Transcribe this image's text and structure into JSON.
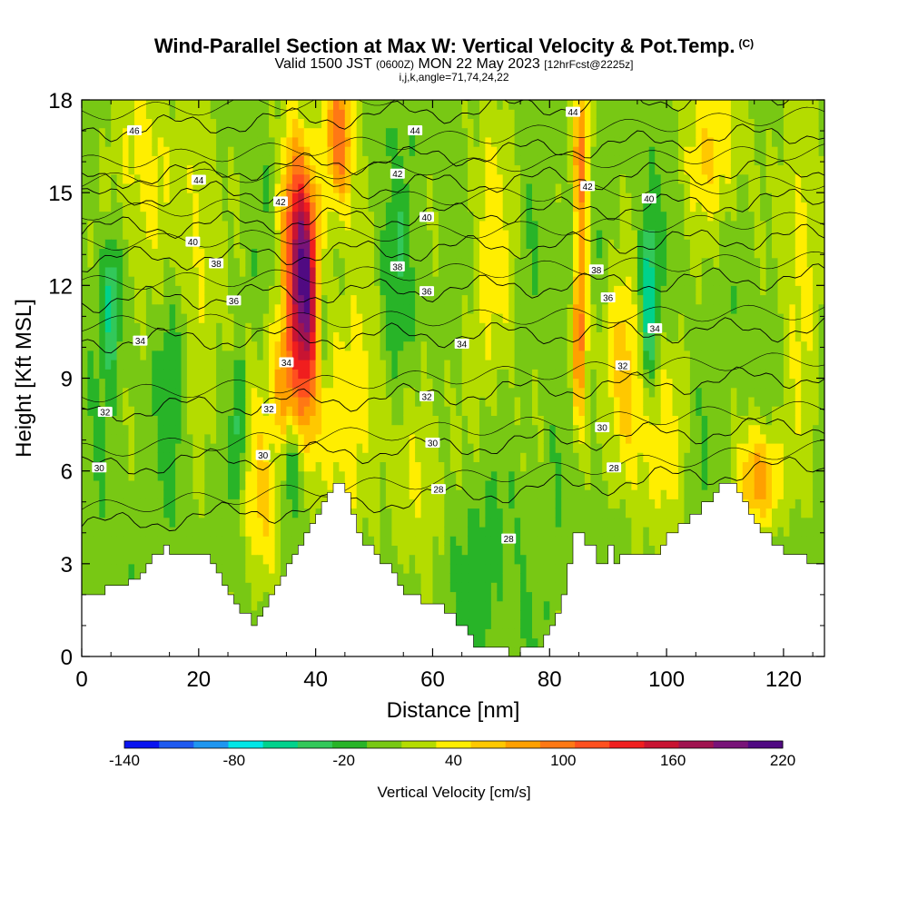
{
  "header": {
    "title": "Wind-Parallel Section at Max W: Vertical Velocity & Pot.Temp.",
    "copyright": "(C)",
    "valid_prefix": "Valid 1500 JST",
    "valid_utc": "(0600Z)",
    "valid_date": "MON 22 May 2023",
    "forecast_tag": "[12hrFcst@2225z]",
    "indices": "i,j,k,angle=71,74,24,22"
  },
  "chart_data": {
    "type": "heatmap",
    "title": "Wind-Parallel Section at Max W: Vertical Velocity & Pot.Temp.",
    "xlabel": "Distance [nm]",
    "ylabel": "Height [Kft MSL]",
    "xlim": [
      0,
      127
    ],
    "ylim": [
      0,
      18
    ],
    "x_ticks": [
      0,
      20,
      40,
      60,
      80,
      100,
      120
    ],
    "y_ticks": [
      0,
      3,
      6,
      9,
      12,
      15,
      18
    ],
    "colorbar": {
      "label": "Vertical Velocity [cm/s]",
      "min": -140,
      "max": 220,
      "step": 20,
      "tick_labels": [
        -140,
        -80,
        -20,
        40,
        100,
        160,
        220
      ],
      "colors": [
        "#0a14f0",
        "#1e5af0",
        "#1e96f0",
        "#00e6e6",
        "#00d28c",
        "#32c85a",
        "#28b428",
        "#78c814",
        "#b4dc00",
        "#ffee00",
        "#ffc800",
        "#ffa000",
        "#ff7814",
        "#ff501e",
        "#f01e1e",
        "#c81432",
        "#a01450",
        "#781478",
        "#500a82"
      ]
    },
    "terrain_profile": [
      [
        0,
        2
      ],
      [
        4,
        2
      ],
      [
        4,
        2.3
      ],
      [
        8,
        2.3
      ],
      [
        8,
        2.5
      ],
      [
        10,
        2.5
      ],
      [
        10,
        2.7
      ],
      [
        11,
        2.7
      ],
      [
        11,
        3
      ],
      [
        12,
        3
      ],
      [
        12,
        3.3
      ],
      [
        14,
        3.3
      ],
      [
        14,
        3.6
      ],
      [
        15,
        3.6
      ],
      [
        15,
        3.3
      ],
      [
        22,
        3.3
      ],
      [
        22,
        3
      ],
      [
        23,
        3
      ],
      [
        23,
        2.7
      ],
      [
        24,
        2.7
      ],
      [
        24,
        2.3
      ],
      [
        25,
        2.3
      ],
      [
        25,
        2
      ],
      [
        26,
        2
      ],
      [
        26,
        1.7
      ],
      [
        27,
        1.7
      ],
      [
        27,
        1.4
      ],
      [
        29,
        1.4
      ],
      [
        29,
        1
      ],
      [
        30,
        1
      ],
      [
        30,
        1.3
      ],
      [
        31,
        1.3
      ],
      [
        31,
        1.6
      ],
      [
        32,
        1.6
      ],
      [
        32,
        2
      ],
      [
        33,
        2
      ],
      [
        33,
        2.3
      ],
      [
        34,
        2.3
      ],
      [
        34,
        2.6
      ],
      [
        35,
        2.6
      ],
      [
        35,
        3
      ],
      [
        36,
        3
      ],
      [
        36,
        3.3
      ],
      [
        37,
        3.3
      ],
      [
        37,
        3.6
      ],
      [
        38,
        3.6
      ],
      [
        38,
        4
      ],
      [
        39,
        4
      ],
      [
        39,
        4.3
      ],
      [
        40,
        4.3
      ],
      [
        40,
        4.6
      ],
      [
        41,
        4.6
      ],
      [
        41,
        5
      ],
      [
        42,
        5
      ],
      [
        42,
        5.3
      ],
      [
        43,
        5.3
      ],
      [
        43,
        5.6
      ],
      [
        45,
        5.6
      ],
      [
        45,
        5.3
      ],
      [
        46,
        5.3
      ],
      [
        46,
        4.6
      ],
      [
        47,
        4.6
      ],
      [
        47,
        4
      ],
      [
        48,
        4
      ],
      [
        48,
        3.6
      ],
      [
        50,
        3.6
      ],
      [
        50,
        3.3
      ],
      [
        51,
        3.3
      ],
      [
        51,
        3
      ],
      [
        53,
        3
      ],
      [
        53,
        2.7
      ],
      [
        54,
        2.7
      ],
      [
        54,
        2.3
      ],
      [
        55,
        2.3
      ],
      [
        55,
        2
      ],
      [
        58,
        2
      ],
      [
        58,
        1.7
      ],
      [
        62,
        1.7
      ],
      [
        62,
        1.4
      ],
      [
        64,
        1.4
      ],
      [
        64,
        1
      ],
      [
        66,
        1
      ],
      [
        66,
        0.7
      ],
      [
        67,
        0.7
      ],
      [
        67,
        0.3
      ],
      [
        73,
        0.3
      ],
      [
        73,
        0
      ],
      [
        75,
        0
      ],
      [
        75,
        0.3
      ],
      [
        79,
        0.3
      ],
      [
        79,
        0.7
      ],
      [
        80,
        0.7
      ],
      [
        80,
        1
      ],
      [
        81,
        1
      ],
      [
        81,
        1.4
      ],
      [
        82,
        1.4
      ],
      [
        82,
        2
      ],
      [
        83,
        2
      ],
      [
        83,
        3
      ],
      [
        84,
        3
      ],
      [
        84,
        4
      ],
      [
        86,
        4
      ],
      [
        86,
        3.6
      ],
      [
        88,
        3.6
      ],
      [
        88,
        3
      ],
      [
        90,
        3
      ],
      [
        90,
        3.6
      ],
      [
        91,
        3.6
      ],
      [
        91,
        3
      ],
      [
        92,
        3
      ],
      [
        92,
        3.3
      ],
      [
        99,
        3.3
      ],
      [
        99,
        3.6
      ],
      [
        100,
        3.6
      ],
      [
        100,
        4
      ],
      [
        102,
        4
      ],
      [
        102,
        4.3
      ],
      [
        104,
        4.3
      ],
      [
        104,
        4.6
      ],
      [
        106,
        4.6
      ],
      [
        106,
        5
      ],
      [
        108,
        5
      ],
      [
        108,
        5.3
      ],
      [
        109,
        5.3
      ],
      [
        109,
        5.6
      ],
      [
        112,
        5.6
      ],
      [
        112,
        5.3
      ],
      [
        113,
        5.3
      ],
      [
        113,
        5
      ],
      [
        114,
        5
      ],
      [
        114,
        4.6
      ],
      [
        115,
        4.6
      ],
      [
        115,
        4.3
      ],
      [
        116,
        4.3
      ],
      [
        116,
        4
      ],
      [
        118,
        4
      ],
      [
        118,
        3.6
      ],
      [
        120,
        3.6
      ],
      [
        120,
        3.3
      ],
      [
        124,
        3.3
      ],
      [
        124,
        3
      ],
      [
        127,
        3
      ]
    ],
    "updrafts": [
      {
        "x": 38,
        "y": 12.0,
        "peak": 220,
        "sx": 2.2,
        "sy": 3.0,
        "tilt": -0.25
      },
      {
        "x": 44,
        "y": 16.8,
        "peak": 110,
        "sx": 1.8,
        "sy": 1.8,
        "tilt": 0
      },
      {
        "x": 30,
        "y": 5.5,
        "peak": 55,
        "sx": 2.4,
        "sy": 2.8,
        "tilt": -0.6
      },
      {
        "x": 35,
        "y": 8.5,
        "peak": 80,
        "sx": 1.8,
        "sy": 1.6,
        "tilt": -0.4
      },
      {
        "x": 85,
        "y": 11.0,
        "peak": 120,
        "sx": 1.0,
        "sy": 2.5,
        "tilt": 0
      },
      {
        "x": 85.5,
        "y": 16.5,
        "peak": 90,
        "sx": 1.0,
        "sy": 1.8,
        "tilt": 0
      },
      {
        "x": 93,
        "y": 8.8,
        "peak": 70,
        "sx": 2.2,
        "sy": 2.6,
        "tilt": -0.3
      },
      {
        "x": 116,
        "y": 5.8,
        "peak": 90,
        "sx": 2.5,
        "sy": 1.2,
        "tilt": 0
      },
      {
        "x": 10,
        "y": 16.0,
        "peak": 45,
        "sx": 3.5,
        "sy": 3.0,
        "tilt": 0
      },
      {
        "x": 20,
        "y": 13.5,
        "peak": 40,
        "sx": 2.5,
        "sy": 4.0,
        "tilt": 0
      },
      {
        "x": 47,
        "y": 8.0,
        "peak": 50,
        "sx": 3.0,
        "sy": 3.0,
        "tilt": 0
      },
      {
        "x": 58,
        "y": 6.0,
        "peak": 35,
        "sx": 3.5,
        "sy": 2.5,
        "tilt": 0
      },
      {
        "x": 70,
        "y": 13.0,
        "peak": 40,
        "sx": 3.0,
        "sy": 4.0,
        "tilt": 0
      },
      {
        "x": 108,
        "y": 16.5,
        "peak": 50,
        "sx": 4.0,
        "sy": 2.0,
        "tilt": 0
      },
      {
        "x": 123,
        "y": 13.0,
        "peak": 45,
        "sx": 2.5,
        "sy": 4.0,
        "tilt": 0
      },
      {
        "x": 100,
        "y": 7.0,
        "peak": 35,
        "sx": 3.0,
        "sy": 2.5,
        "tilt": 0
      }
    ],
    "downdrafts": [
      {
        "x": 41,
        "y": 10.5,
        "peak": -80,
        "sx": 1.0,
        "sy": 1.6,
        "tilt": 0
      },
      {
        "x": 5,
        "y": 11.5,
        "peak": -60,
        "sx": 1.2,
        "sy": 1.6,
        "tilt": 0
      },
      {
        "x": 97,
        "y": 11.5,
        "peak": -75,
        "sx": 1.0,
        "sy": 2.0,
        "tilt": 0
      },
      {
        "x": 84,
        "y": 12.5,
        "peak": -55,
        "sx": 0.9,
        "sy": 1.5,
        "tilt": 0
      },
      {
        "x": 27,
        "y": 7.5,
        "peak": -60,
        "sx": 1.0,
        "sy": 1.5,
        "tilt": 0
      },
      {
        "x": 36,
        "y": 6.5,
        "peak": -55,
        "sx": 1.0,
        "sy": 1.2,
        "tilt": 0
      },
      {
        "x": 68,
        "y": 3.0,
        "peak": -20,
        "sx": 4.0,
        "sy": 2.0,
        "tilt": 0
      },
      {
        "x": 16,
        "y": 9.5,
        "peak": -25,
        "sx": 2.0,
        "sy": 2.0,
        "tilt": 0
      },
      {
        "x": 54,
        "y": 11.0,
        "peak": -25,
        "sx": 2.0,
        "sy": 3.0,
        "tilt": 0
      }
    ],
    "theta_contours": [
      {
        "level": 28,
        "y0": 4.2,
        "y1": 6.2
      },
      {
        "level": 30,
        "y0": 6.1,
        "y1": 7.5
      },
      {
        "level": 32,
        "y0": 7.9,
        "y1": 9.1
      },
      {
        "level": 34,
        "y0": 10.2,
        "y1": 10.6
      },
      {
        "level": 36,
        "y0": 11.5,
        "y1": 12.3
      },
      {
        "level": 38,
        "y0": 12.8,
        "y1": 13.6
      },
      {
        "level": 40,
        "y0": 13.8,
        "y1": 14.8
      },
      {
        "level": 42,
        "y0": 14.8,
        "y1": 15.8
      },
      {
        "level": 44,
        "y0": 15.4,
        "y1": 17.0
      },
      {
        "level": 46,
        "y0": 17.0,
        "y1": 18.3
      }
    ],
    "contour_labels": [
      {
        "text": "46",
        "x": 9,
        "y": 17.0
      },
      {
        "text": "44",
        "x": 20,
        "y": 15.4
      },
      {
        "text": "44",
        "x": 57,
        "y": 17.0
      },
      {
        "text": "44",
        "x": 84,
        "y": 17.6
      },
      {
        "text": "42",
        "x": 34,
        "y": 14.7
      },
      {
        "text": "42",
        "x": 54,
        "y": 15.6
      },
      {
        "text": "42",
        "x": 86.5,
        "y": 15.2
      },
      {
        "text": "40",
        "x": 19,
        "y": 13.4
      },
      {
        "text": "40",
        "x": 59,
        "y": 14.2
      },
      {
        "text": "40",
        "x": 97,
        "y": 14.8
      },
      {
        "text": "38",
        "x": 23,
        "y": 12.7
      },
      {
        "text": "38",
        "x": 54,
        "y": 12.6
      },
      {
        "text": "38",
        "x": 88,
        "y": 12.5
      },
      {
        "text": "36",
        "x": 26,
        "y": 11.5
      },
      {
        "text": "36",
        "x": 59,
        "y": 11.8
      },
      {
        "text": "36",
        "x": 90,
        "y": 11.6
      },
      {
        "text": "34",
        "x": 10,
        "y": 10.2
      },
      {
        "text": "34",
        "x": 35,
        "y": 9.5
      },
      {
        "text": "34",
        "x": 65,
        "y": 10.1
      },
      {
        "text": "34",
        "x": 98,
        "y": 10.6
      },
      {
        "text": "32",
        "x": 4,
        "y": 7.9
      },
      {
        "text": "32",
        "x": 32,
        "y": 8.0
      },
      {
        "text": "32",
        "x": 59,
        "y": 8.4
      },
      {
        "text": "32",
        "x": 92.5,
        "y": 9.4
      },
      {
        "text": "30",
        "x": 3,
        "y": 6.1
      },
      {
        "text": "30",
        "x": 31,
        "y": 6.5
      },
      {
        "text": "30",
        "x": 60,
        "y": 6.9
      },
      {
        "text": "30",
        "x": 89,
        "y": 7.4
      },
      {
        "text": "28",
        "x": 61,
        "y": 5.4
      },
      {
        "text": "28",
        "x": 73,
        "y": 3.8
      },
      {
        "text": "28",
        "x": 91,
        "y": 6.1
      }
    ]
  }
}
